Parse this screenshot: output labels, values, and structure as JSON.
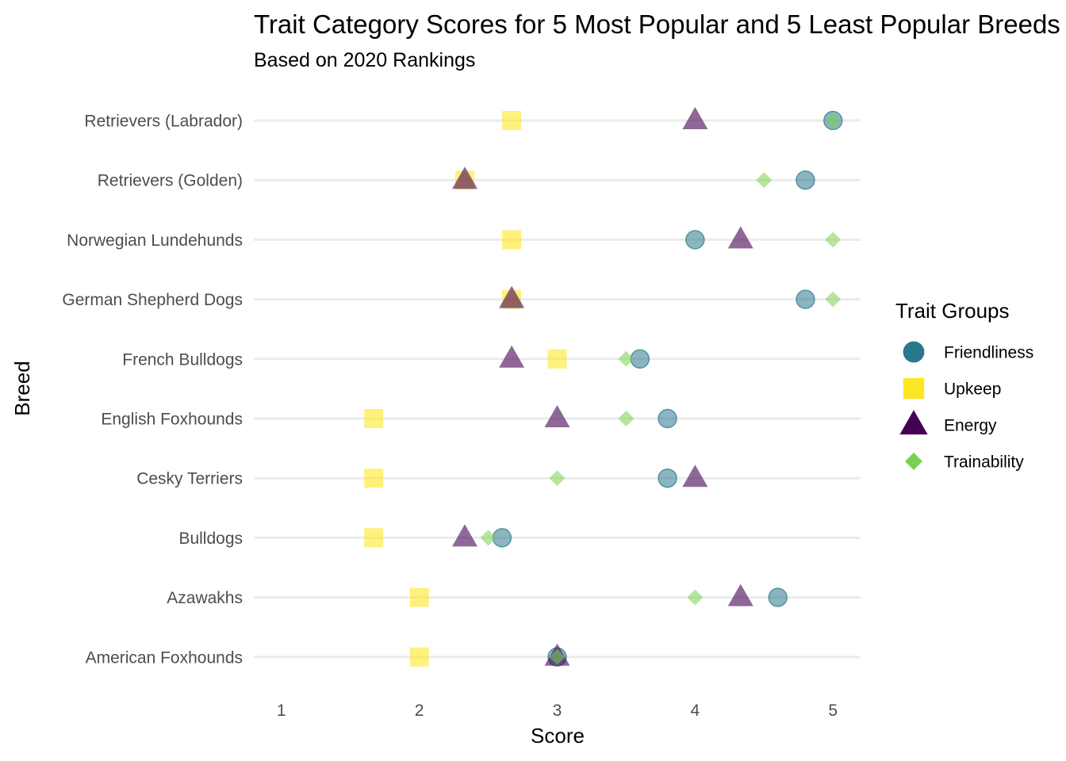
{
  "chart_data": {
    "type": "scatter",
    "title": "Trait Category Scores for 5 Most Popular and 5 Least Popular Breeds",
    "subtitle": "Based on 2020 Rankings",
    "xlabel": "Score",
    "ylabel": "Breed",
    "xlim": [
      0.8,
      5.2
    ],
    "x_ticks": [
      "1",
      "2",
      "3",
      "4",
      "5"
    ],
    "x_tick_values": [
      1,
      2,
      3,
      4,
      5
    ],
    "categories": [
      "Retrievers (Labrador)",
      "Retrievers (Golden)",
      "Norwegian Lundehunds",
      "German Shepherd Dogs",
      "French Bulldogs",
      "English Foxhounds",
      "Cesky Terriers",
      "Bulldogs",
      "Azawakhs",
      "American Foxhounds"
    ],
    "legend_title": "Trait Groups",
    "legend_position": "right",
    "grid": "horizontal major only",
    "series": [
      {
        "name": "Friendliness",
        "shape": "circle",
        "color": "#2A788E",
        "values": [
          5.0,
          4.8,
          4.0,
          4.8,
          3.6,
          3.8,
          3.8,
          2.6,
          4.6,
          3.0
        ]
      },
      {
        "name": "Upkeep",
        "shape": "square",
        "color": "#FDE725",
        "values": [
          2.67,
          2.33,
          2.67,
          2.67,
          3.0,
          1.67,
          1.67,
          1.67,
          2.0,
          2.0
        ]
      },
      {
        "name": "Energy",
        "shape": "triangle",
        "color": "#440154",
        "values": [
          4.0,
          2.33,
          4.33,
          2.67,
          2.67,
          3.0,
          4.0,
          2.33,
          4.33,
          3.0
        ]
      },
      {
        "name": "Trainability",
        "shape": "diamond",
        "color": "#7AD151",
        "values": [
          5.0,
          4.5,
          5.0,
          5.0,
          3.5,
          3.5,
          3.0,
          2.5,
          4.0,
          3.0
        ]
      }
    ]
  }
}
